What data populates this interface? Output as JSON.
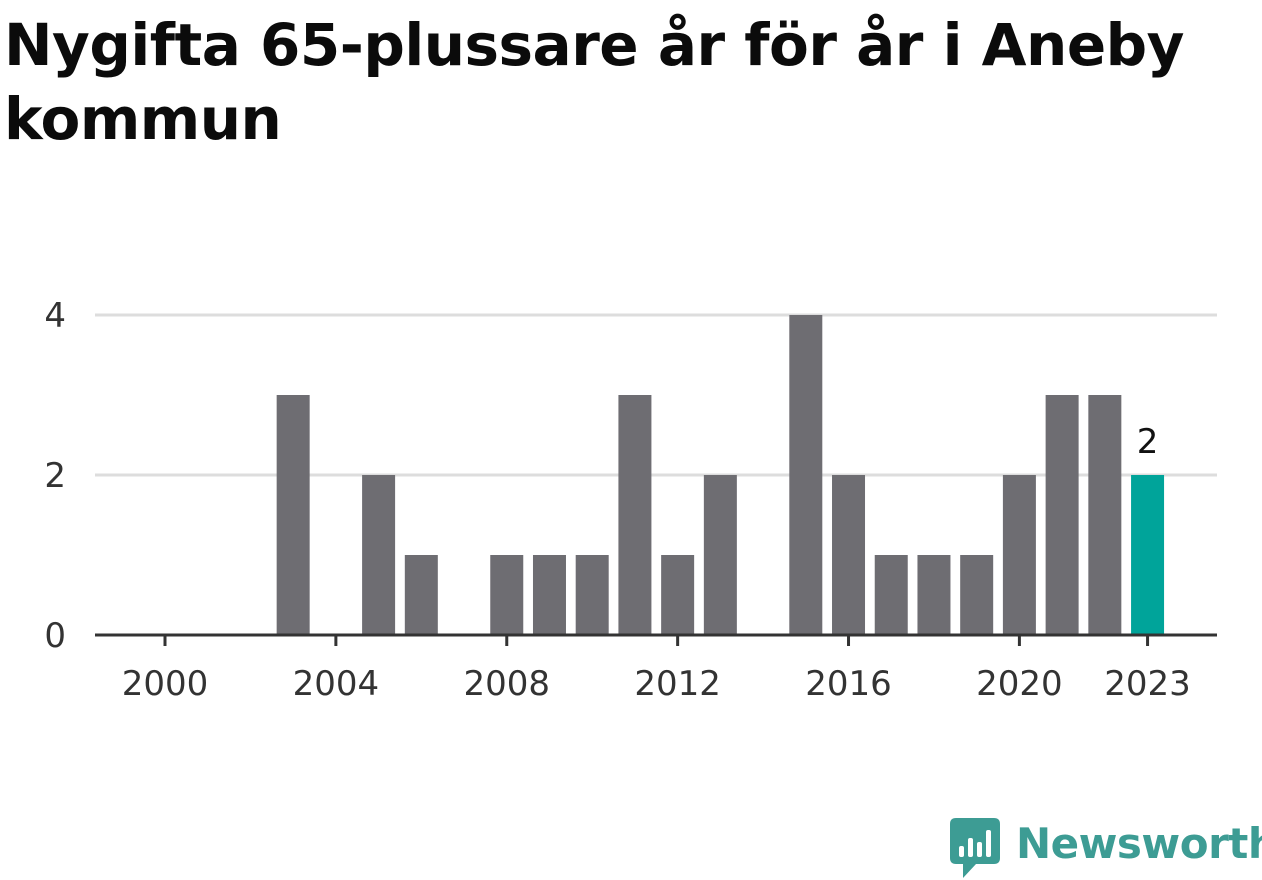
{
  "title": "Nygifta 65-plussare år för år i Aneby kommun",
  "brand": {
    "name": "Newsworthy",
    "color": "#3d9c94"
  },
  "colors": {
    "bar": "#6e6d72",
    "highlight": "#00a49a",
    "grid": "#dddddd",
    "axis": "#333333"
  },
  "chart_data": {
    "type": "bar",
    "title": "Nygifta 65-plussare år för år i Aneby kommun",
    "xlabel": "",
    "ylabel": "",
    "categories": [
      2000,
      2001,
      2002,
      2003,
      2004,
      2005,
      2006,
      2007,
      2008,
      2009,
      2010,
      2011,
      2012,
      2013,
      2014,
      2015,
      2016,
      2017,
      2018,
      2019,
      2020,
      2021,
      2022,
      2023
    ],
    "values": [
      0,
      0,
      0,
      3,
      0,
      2,
      1,
      0,
      1,
      1,
      1,
      3,
      1,
      2,
      0,
      4,
      2,
      1,
      1,
      1,
      2,
      3,
      3,
      2
    ],
    "highlight_category": 2023,
    "highlight_label": "2",
    "ylim": [
      0,
      4
    ],
    "y_ticks": [
      0,
      2,
      4
    ],
    "x_tick_labels": [
      "2000",
      "2004",
      "2008",
      "2012",
      "2016",
      "2020",
      "2023"
    ],
    "grid": true,
    "legend": "none"
  }
}
